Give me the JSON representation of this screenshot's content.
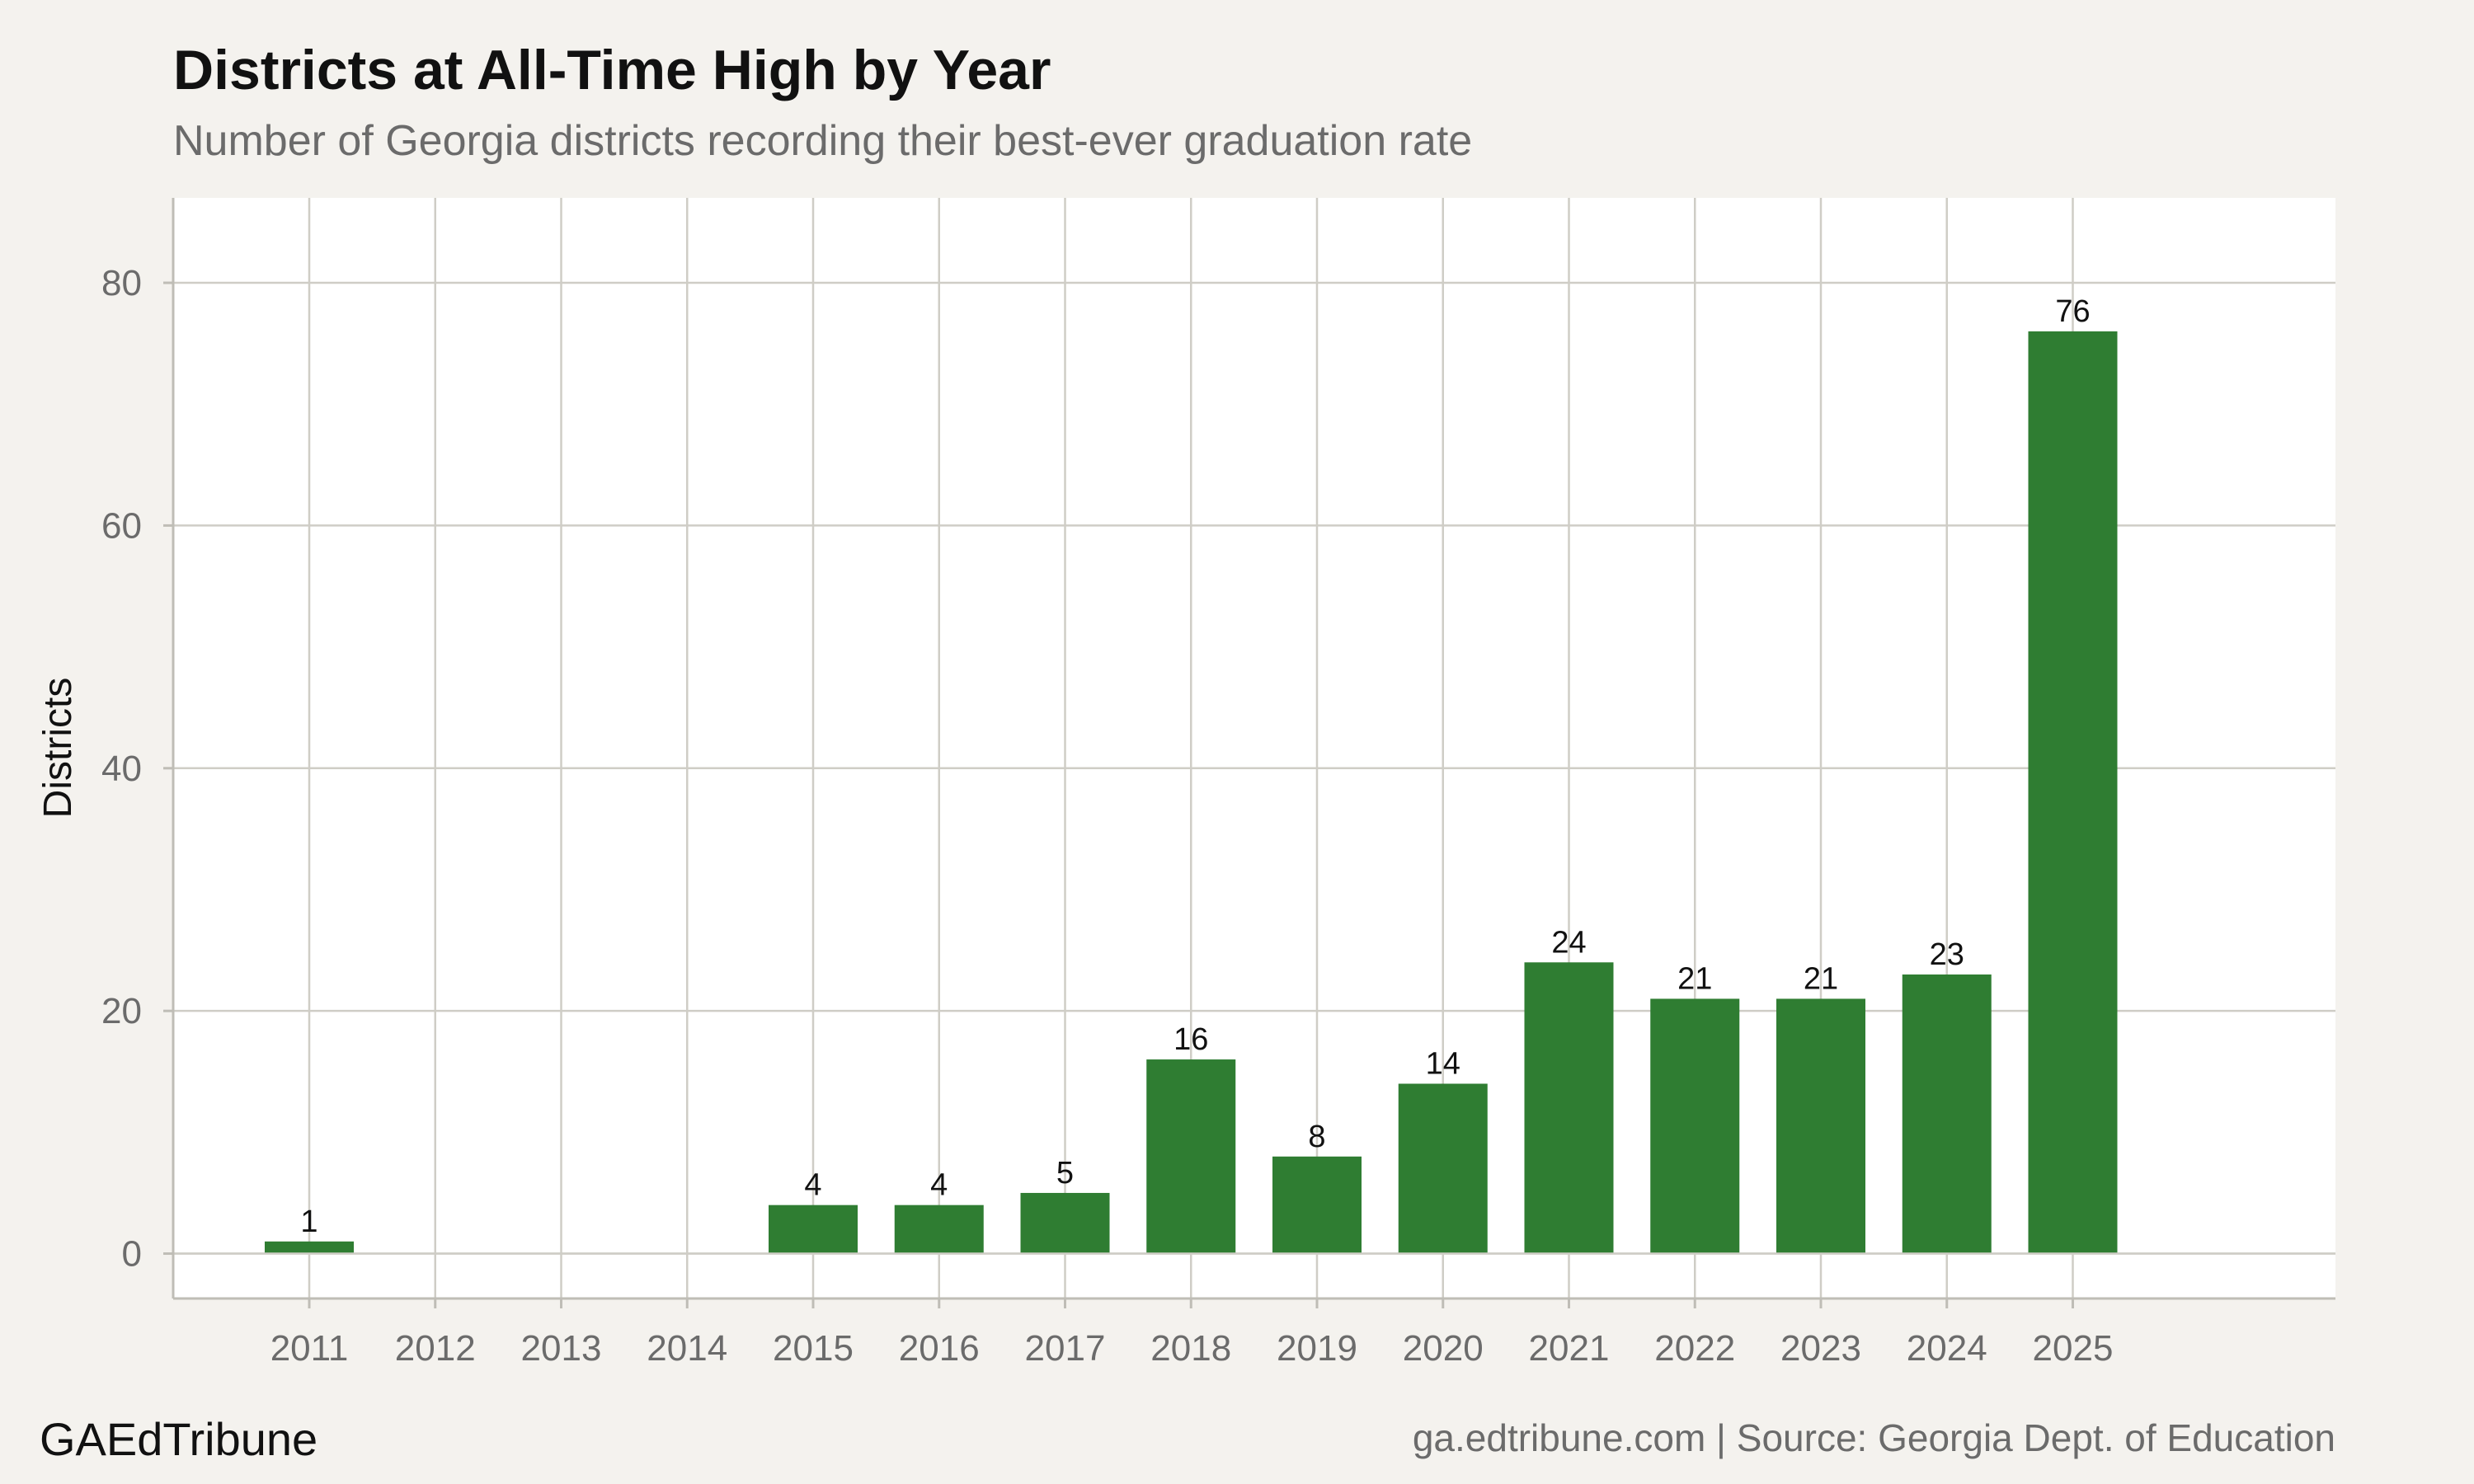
{
  "chart_data": {
    "type": "bar",
    "title": "Districts at All-Time High by Year",
    "subtitle": "Number of Georgia districts recording their best-ever graduation rate",
    "xlabel": "",
    "ylabel": "Districts",
    "categories": [
      "2011",
      "2012",
      "2013",
      "2014",
      "2015",
      "2016",
      "2017",
      "2018",
      "2019",
      "2020",
      "2021",
      "2022",
      "2023",
      "2024",
      "2025"
    ],
    "values": [
      1,
      0,
      0,
      0,
      4,
      4,
      5,
      16,
      8,
      14,
      24,
      21,
      21,
      23,
      76
    ],
    "data_labels": [
      "1",
      "",
      "",
      "",
      "4",
      "4",
      "5",
      "16",
      "8",
      "14",
      "24",
      "21",
      "21",
      "23",
      "76"
    ],
    "yticks": [
      0,
      20,
      40,
      60,
      80
    ],
    "ylim": [
      -3.7,
      87
    ],
    "grid": true,
    "legend": "none",
    "bar_color": "#2f7d32",
    "background_color": "#f4f2ee",
    "panel_color": "#ffffff",
    "grid_color": "#cfcdc6"
  },
  "footer": {
    "brand": "GAEdTribune",
    "source": "ga.edtribune.com | Source: Georgia Dept. of Education"
  }
}
